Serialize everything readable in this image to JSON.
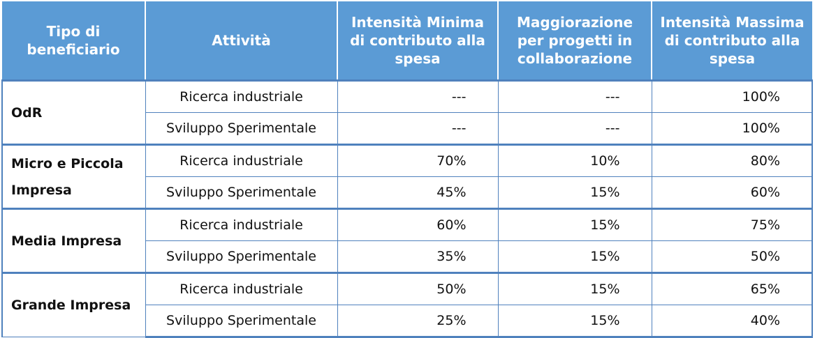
{
  "table": {
    "header": [
      "Tipo di beneficiario",
      "Attività",
      "Intensità Minima di contributo alla spesa",
      "Maggiorazione per progetti in collaborazione",
      "Intensità Massima di contributo alla spesa"
    ],
    "groups": [
      {
        "beneficiary": "OdR",
        "rows": [
          [
            "Ricerca industriale",
            "---",
            "---",
            "100%"
          ],
          [
            "Sviluppo Sperimentale",
            "---",
            "---",
            "100%"
          ]
        ]
      },
      {
        "beneficiary": "Micro e Piccola Impresa",
        "rows": [
          [
            "Ricerca industriale",
            "70%",
            "10%",
            "80%"
          ],
          [
            "Sviluppo Sperimentale",
            "45%",
            "15%",
            "60%"
          ]
        ]
      },
      {
        "beneficiary": "Media Impresa",
        "rows": [
          [
            "Ricerca industriale",
            "60%",
            "15%",
            "75%"
          ],
          [
            "Sviluppo Sperimentale",
            "35%",
            "15%",
            "50%"
          ]
        ]
      },
      {
        "beneficiary": "Grande Impresa",
        "rows": [
          [
            "Ricerca industriale",
            "50%",
            "15%",
            "65%"
          ],
          [
            "Sviluppo Sperimentale",
            "25%",
            "15%",
            "40%"
          ]
        ]
      }
    ]
  }
}
